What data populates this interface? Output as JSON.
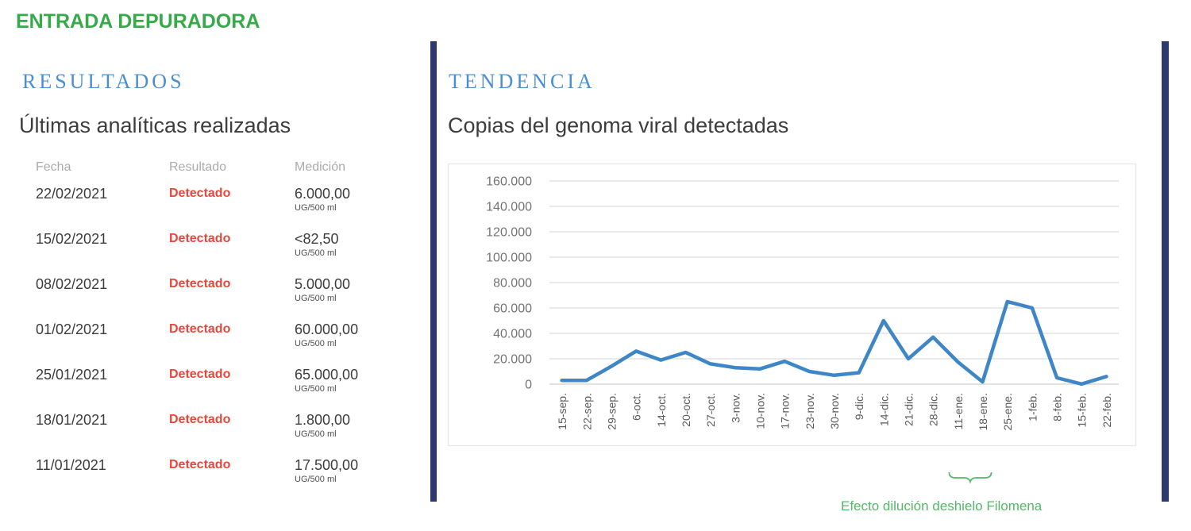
{
  "page": {
    "title": "ENTRADA DEPURADORA"
  },
  "results": {
    "section_label": "RESULTADOS",
    "subtitle": "Últimas analíticas realizadas",
    "table": {
      "columns": [
        "Fecha",
        "Resultado",
        "Medición"
      ],
      "unit": "UG/500 ml",
      "rows": [
        {
          "fecha": "22/02/2021",
          "resultado": "Detectado",
          "medicion": "6.000,00"
        },
        {
          "fecha": "15/02/2021",
          "resultado": "Detectado",
          "medicion": "<82,50"
        },
        {
          "fecha": "08/02/2021",
          "resultado": "Detectado",
          "medicion": "5.000,00"
        },
        {
          "fecha": "01/02/2021",
          "resultado": "Detectado",
          "medicion": "60.000,00"
        },
        {
          "fecha": "25/01/2021",
          "resultado": "Detectado",
          "medicion": "65.000,00"
        },
        {
          "fecha": "18/01/2021",
          "resultado": "Detectado",
          "medicion": "1.800,00"
        },
        {
          "fecha": "11/01/2021",
          "resultado": "Detectado",
          "medicion": "17.500,00"
        }
      ]
    }
  },
  "trend": {
    "section_label": "TENDENCIA",
    "title": "Copias del genoma viral detectadas",
    "annotation": "Efecto dilución deshielo Filomena"
  },
  "chart_data": {
    "type": "line",
    "title": "Copias del genoma viral detectadas",
    "categories": [
      "15-sep.",
      "22-sep.",
      "29-sep.",
      "6-oct.",
      "14-oct.",
      "20-oct.",
      "27-oct.",
      "3-nov.",
      "10-nov.",
      "17-nov.",
      "23-nov.",
      "30-nov.",
      "9-dic.",
      "14-dic.",
      "21-dic.",
      "28-dic.",
      "11-ene.",
      "18-ene.",
      "25-ene.",
      "1-feb.",
      "8-feb.",
      "15-feb.",
      "22-feb."
    ],
    "values": [
      3000,
      3000,
      14000,
      26000,
      19000,
      25000,
      16000,
      13000,
      12000,
      18000,
      10000,
      7000,
      9000,
      50000,
      20000,
      37000,
      17500,
      1800,
      65000,
      60000,
      5000,
      100,
      6000
    ],
    "xlabel": "",
    "ylabel": "",
    "ylim": [
      0,
      160000
    ],
    "ytick_step": 20000,
    "ytick_labels": [
      "0",
      "20.000",
      "40.000",
      "60.000",
      "80.000",
      "100.000",
      "120.000",
      "140.000",
      "160.000"
    ],
    "grid": true,
    "legend": "none",
    "annotation": {
      "text": "Efecto dilución deshielo Filomena",
      "span_categories": [
        "11-ene.",
        "18-ene."
      ]
    }
  },
  "colors": {
    "title_green": "#36a948",
    "section_blue": "#4a8fd3",
    "detected_red": "#e8463a",
    "divider_navy": "#2d3a6d",
    "line_blue": "#3e86c6",
    "gridline_gray": "#dedede",
    "axis_gray": "#d0d0d0",
    "annotation_green": "#53b867",
    "tick_label_gray": "#737373",
    "xlabel_gray": "#5a5a5a"
  }
}
